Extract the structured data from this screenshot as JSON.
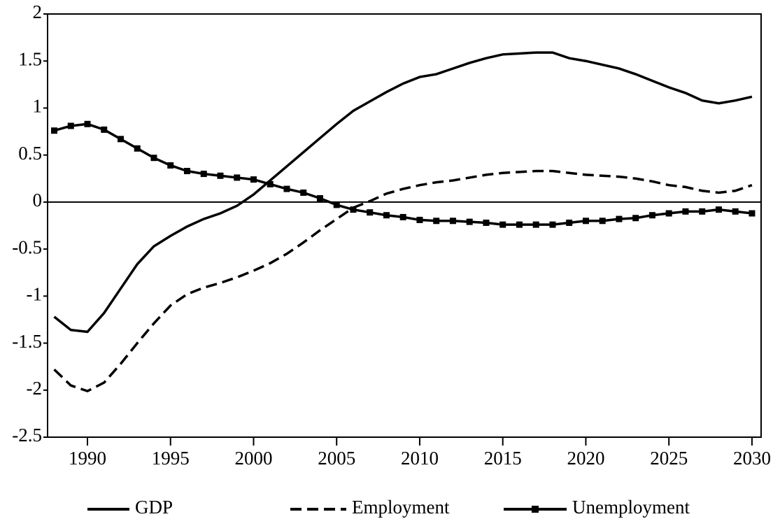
{
  "chart_data": {
    "type": "line",
    "x": [
      1988,
      1989,
      1990,
      1991,
      1992,
      1993,
      1994,
      1995,
      1996,
      1997,
      1998,
      1999,
      2000,
      2001,
      2002,
      2003,
      2004,
      2005,
      2006,
      2007,
      2008,
      2009,
      2010,
      2011,
      2012,
      2013,
      2014,
      2015,
      2016,
      2017,
      2018,
      2019,
      2020,
      2021,
      2022,
      2023,
      2024,
      2025,
      2026,
      2027,
      2028,
      2029,
      2030
    ],
    "series": [
      {
        "name": "GDP",
        "color": "#000000",
        "style": "solid",
        "values": [
          -1.22,
          -1.36,
          -1.38,
          -1.18,
          -0.92,
          -0.66,
          -0.47,
          -0.36,
          -0.26,
          -0.18,
          -0.12,
          -0.04,
          0.08,
          0.23,
          0.38,
          0.53,
          0.68,
          0.83,
          0.97,
          1.07,
          1.17,
          1.26,
          1.33,
          1.36,
          1.42,
          1.48,
          1.53,
          1.57,
          1.58,
          1.59,
          1.59,
          1.53,
          1.5,
          1.46,
          1.42,
          1.36,
          1.29,
          1.22,
          1.16,
          1.08,
          1.05,
          1.08,
          1.12
        ]
      },
      {
        "name": "Employment",
        "color": "#000000",
        "style": "dashed",
        "values": [
          -1.78,
          -1.95,
          -2.01,
          -1.92,
          -1.72,
          -1.5,
          -1.29,
          -1.1,
          -0.98,
          -0.91,
          -0.86,
          -0.8,
          -0.73,
          -0.65,
          -0.55,
          -0.43,
          -0.3,
          -0.18,
          -0.06,
          0.01,
          0.09,
          0.14,
          0.18,
          0.21,
          0.23,
          0.26,
          0.29,
          0.31,
          0.32,
          0.33,
          0.33,
          0.31,
          0.29,
          0.28,
          0.27,
          0.25,
          0.22,
          0.18,
          0.16,
          0.12,
          0.1,
          0.12,
          0.18
        ]
      },
      {
        "name": "Unemployment",
        "color": "#000000",
        "style": "markers",
        "values": [
          0.76,
          0.81,
          0.83,
          0.77,
          0.67,
          0.57,
          0.47,
          0.39,
          0.33,
          0.3,
          0.28,
          0.26,
          0.24,
          0.19,
          0.14,
          0.1,
          0.04,
          -0.03,
          -0.08,
          -0.11,
          -0.14,
          -0.16,
          -0.19,
          -0.2,
          -0.2,
          -0.21,
          -0.22,
          -0.24,
          -0.24,
          -0.24,
          -0.24,
          -0.22,
          -0.2,
          -0.2,
          -0.18,
          -0.17,
          -0.14,
          -0.12,
          -0.1,
          -0.1,
          -0.08,
          -0.1,
          -0.12
        ]
      }
    ],
    "xlim": [
      1987.6,
      2030.55
    ],
    "xticks": [
      1990,
      1995,
      2000,
      2005,
      2010,
      2015,
      2020,
      2025,
      2030
    ],
    "ylim": [
      -2.5,
      2
    ],
    "yticks": [
      2,
      1.5,
      1,
      0.5,
      0,
      -0.5,
      -1,
      -1.5,
      -2,
      -2.5
    ],
    "hline": 0,
    "legend": "bottom"
  }
}
